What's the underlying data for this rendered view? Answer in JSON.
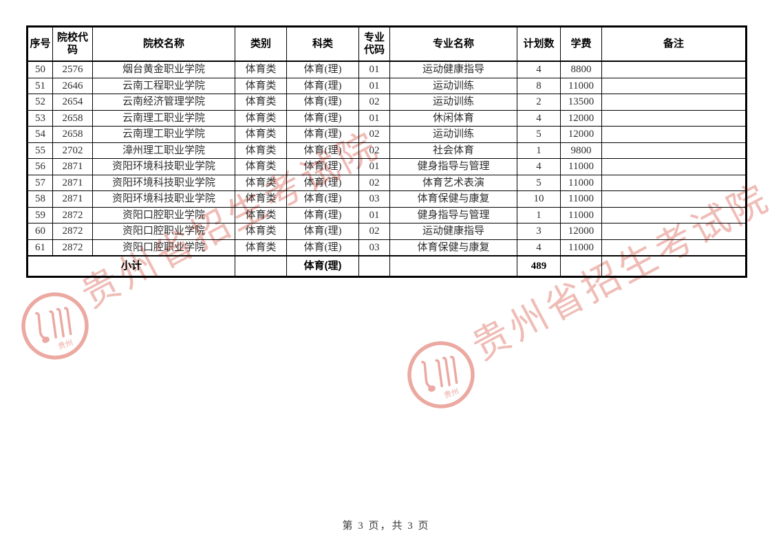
{
  "table": {
    "col_keys": [
      "no",
      "college-code",
      "college-name",
      "category",
      "subject-type",
      "major-code",
      "major-name",
      "plan-count",
      "tuition",
      "remark"
    ],
    "headers": [
      "序号",
      "院校代码",
      "院校名称",
      "类别",
      "科类",
      "专业代码",
      "专业名称",
      "计划数",
      "学费",
      "备注"
    ],
    "rows": [
      [
        "50",
        "2576",
        "烟台黄金职业学院",
        "体育类",
        "体育(理)",
        "01",
        "运动健康指导",
        "4",
        "8800",
        ""
      ],
      [
        "51",
        "2646",
        "云南工程职业学院",
        "体育类",
        "体育(理)",
        "01",
        "运动训练",
        "8",
        "11000",
        ""
      ],
      [
        "52",
        "2654",
        "云南经济管理学院",
        "体育类",
        "体育(理)",
        "02",
        "运动训练",
        "2",
        "13500",
        ""
      ],
      [
        "53",
        "2658",
        "云南理工职业学院",
        "体育类",
        "体育(理)",
        "01",
        "休闲体育",
        "4",
        "12000",
        ""
      ],
      [
        "54",
        "2658",
        "云南理工职业学院",
        "体育类",
        "体育(理)",
        "02",
        "运动训练",
        "5",
        "12000",
        ""
      ],
      [
        "55",
        "2702",
        "漳州理工职业学院",
        "体育类",
        "体育(理)",
        "02",
        "社会体育",
        "1",
        "9800",
        ""
      ],
      [
        "56",
        "2871",
        "资阳环境科技职业学院",
        "体育类",
        "体育(理)",
        "01",
        "健身指导与管理",
        "4",
        "11000",
        ""
      ],
      [
        "57",
        "2871",
        "资阳环境科技职业学院",
        "体育类",
        "体育(理)",
        "02",
        "体育艺术表演",
        "5",
        "11000",
        ""
      ],
      [
        "58",
        "2871",
        "资阳环境科技职业学院",
        "体育类",
        "体育(理)",
        "03",
        "体育保健与康复",
        "10",
        "11000",
        ""
      ],
      [
        "59",
        "2872",
        "资阳口腔职业学院",
        "体育类",
        "体育(理)",
        "01",
        "健身指导与管理",
        "1",
        "11000",
        ""
      ],
      [
        "60",
        "2872",
        "资阳口腔职业学院",
        "体育类",
        "体育(理)",
        "02",
        "运动健康指导",
        "3",
        "12000",
        ""
      ],
      [
        "61",
        "2872",
        "资阳口腔职业学院",
        "体育类",
        "体育(理)",
        "03",
        "体育保健与康复",
        "4",
        "11000",
        ""
      ]
    ],
    "subtotal": {
      "label": "小计",
      "subject": "体育(理)",
      "plan_total": "489"
    }
  },
  "watermark": {
    "text": "贵州省招生考试院",
    "stamp_text": "贵州",
    "color": "#e2847a"
  },
  "footer": {
    "page_text": "第 3 页，共 3 页"
  }
}
